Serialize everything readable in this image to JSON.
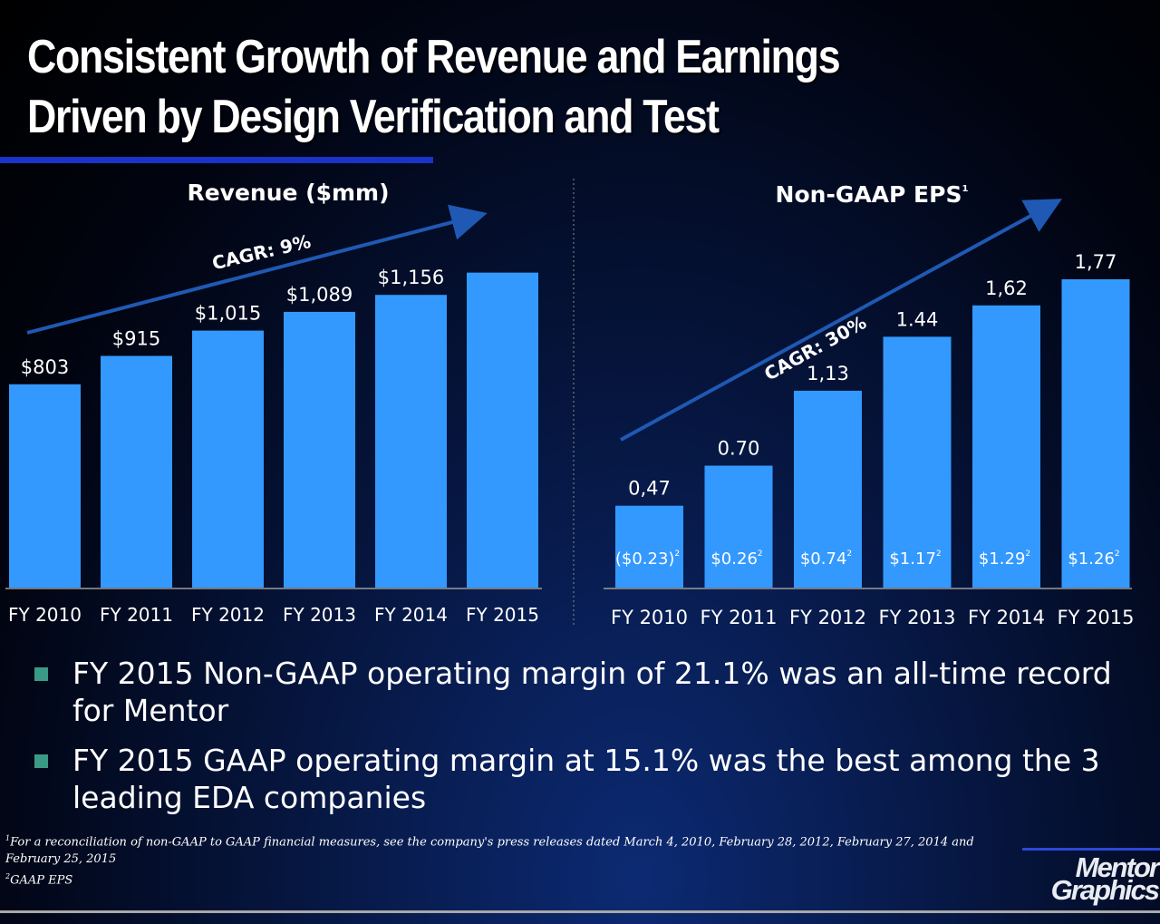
{
  "slide": {
    "title_line1": "Consistent Growth of Revenue and Earnings",
    "title_line2": "Driven by Design Verification and Test"
  },
  "colors": {
    "bar": "#3399ff",
    "arrow": "#1f59b3",
    "title_rule": "#1a33c8",
    "bullet_marker": "#3a9a86"
  },
  "chart_data": [
    {
      "type": "bar",
      "title": "Revenue ($mm)",
      "categories": [
        "FY 2010",
        "FY 2011",
        "FY 2012",
        "FY 2013",
        "FY 2014",
        "FY 2015"
      ],
      "values": [
        803,
        915,
        1015,
        1089,
        1156,
        1244
      ],
      "data_labels": [
        "$803",
        "$915",
        "$1,015",
        "$1,089",
        "$1,156",
        ""
      ],
      "ylim": [
        0,
        1300
      ],
      "trend_label": "CAGR: 9%",
      "grid": false
    },
    {
      "type": "bar",
      "title": "Non-GAAP EPS",
      "title_superscript": "1",
      "categories": [
        "FY 2010",
        "FY 2011",
        "FY 2012",
        "FY 2013",
        "FY 2014",
        "FY 2015"
      ],
      "values": [
        0.47,
        0.7,
        1.13,
        1.44,
        1.62,
        1.77
      ],
      "data_labels": [
        "0,47",
        "0.70",
        "1,13",
        "1.44",
        "1,62",
        "1,77"
      ],
      "inner_labels": [
        "($0.23)",
        "$0.26",
        "$0.74",
        "$1.17",
        "$1.29",
        "$1.26"
      ],
      "inner_superscript": "2",
      "ylim": [
        0,
        1.9
      ],
      "trend_label": "CAGR: 30%",
      "grid": false
    }
  ],
  "bullets": [
    "FY 2015 Non-GAAP operating margin of 21.1% was an all-time record for Mentor",
    "FY 2015 GAAP operating margin at 15.1% was the best among the 3 leading EDA companies"
  ],
  "footnotes": {
    "note1_marker": "1",
    "note1": "For a reconciliation of non-GAAP to GAAP financial measures, see the company's press releases dated March 4, 2010, February 28, 2012, February 27, 2014 and February 25, 2015",
    "note2_marker": "2",
    "note2": "GAAP EPS"
  },
  "logo": {
    "line1": "Mentor",
    "line2": "Graphics"
  }
}
